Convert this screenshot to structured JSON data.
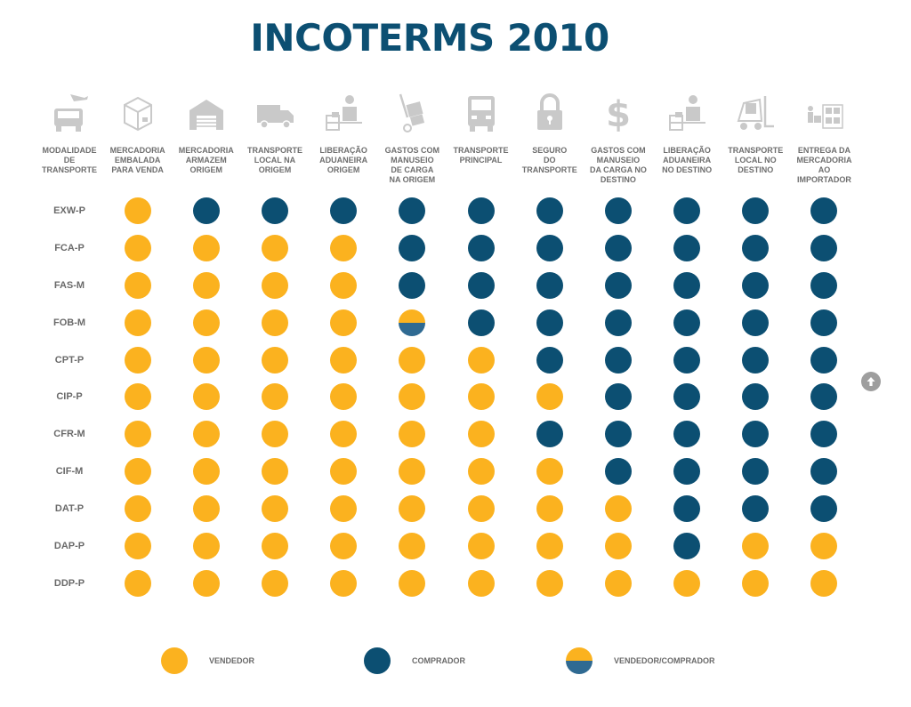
{
  "title": "INCOTERMS 2010",
  "columns": [
    {
      "label": "MODALIDADE\nDE\nTRANSPORTE",
      "icon": "truck-plane-icon"
    },
    {
      "label": "MERCADORIA\nEMBALADA\nPARA VENDA",
      "icon": "package-box-icon"
    },
    {
      "label": "MERCADORIA\nARMAZEM\nORIGEM",
      "icon": "warehouse-icon"
    },
    {
      "label": "TRANSPORTE\nLOCAL NA\nORIGEM",
      "icon": "delivery-truck-icon"
    },
    {
      "label": "LIBERAÇÃO\nADUANEIRA\nORIGEM",
      "icon": "customs-officer-icon"
    },
    {
      "label": "GASTOS COM\nMANUSEIO\nDE CARGA\nNA ORIGEM",
      "icon": "hand-truck-icon"
    },
    {
      "label": "TRANSPORTE\nPRINCIPAL",
      "icon": "truck-front-icon"
    },
    {
      "label": "SEGURO\nDO TRANSPORTE",
      "icon": "padlock-icon"
    },
    {
      "label": "GASTOS COM\nMANUSEIO\nDA CARGA NO\nDESTINO",
      "icon": "dollar-icon"
    },
    {
      "label": "LIBERAÇÃO\nADUANEIRA\nNO DESTINO",
      "icon": "customs-officer-icon"
    },
    {
      "label": "TRANSPORTE\nLOCAL NO\nDESTINO",
      "icon": "forklift-icon"
    },
    {
      "label": "ENTREGA DA\nMERCADORIA\nAO\nIMPORTADOR",
      "icon": "delivery-person-icon"
    }
  ],
  "rows": [
    {
      "term": "EXW-P",
      "cells": [
        "v",
        "c",
        "c",
        "c",
        "c",
        "c",
        "c",
        "c",
        "c",
        "c",
        "c"
      ]
    },
    {
      "term": "FCA-P",
      "cells": [
        "v",
        "v",
        "v",
        "v",
        "c",
        "c",
        "c",
        "c",
        "c",
        "c",
        "c"
      ]
    },
    {
      "term": "FAS-M",
      "cells": [
        "v",
        "v",
        "v",
        "v",
        "c",
        "c",
        "c",
        "c",
        "c",
        "c",
        "c"
      ]
    },
    {
      "term": "FOB-M",
      "cells": [
        "v",
        "v",
        "v",
        "v",
        "vc",
        "c",
        "c",
        "c",
        "c",
        "c",
        "c"
      ]
    },
    {
      "term": "CPT-P",
      "cells": [
        "v",
        "v",
        "v",
        "v",
        "v",
        "v",
        "c",
        "c",
        "c",
        "c",
        "c"
      ]
    },
    {
      "term": "CIP-P",
      "cells": [
        "v",
        "v",
        "v",
        "v",
        "v",
        "v",
        "v",
        "c",
        "c",
        "c",
        "c"
      ]
    },
    {
      "term": "CFR-M",
      "cells": [
        "v",
        "v",
        "v",
        "v",
        "v",
        "v",
        "c",
        "c",
        "c",
        "c",
        "c"
      ]
    },
    {
      "term": "CIF-M",
      "cells": [
        "v",
        "v",
        "v",
        "v",
        "v",
        "v",
        "v",
        "c",
        "c",
        "c",
        "c"
      ]
    },
    {
      "term": "DAT-P",
      "cells": [
        "v",
        "v",
        "v",
        "v",
        "v",
        "v",
        "v",
        "v",
        "c",
        "c",
        "c"
      ]
    },
    {
      "term": "DAP-P",
      "cells": [
        "v",
        "v",
        "v",
        "v",
        "v",
        "v",
        "v",
        "v",
        "c",
        "v",
        "v"
      ]
    },
    {
      "term": "DDP-P",
      "cells": [
        "v",
        "v",
        "v",
        "v",
        "v",
        "v",
        "v",
        "v",
        "v",
        "v",
        "v"
      ]
    }
  ],
  "legend": [
    {
      "key": "v",
      "label": "VENDEDOR"
    },
    {
      "key": "c",
      "label": "COMPRADOR"
    },
    {
      "key": "vc",
      "label": "VENDEDOR/COMPRADOR"
    }
  ],
  "colors": {
    "vendedor": "#fbb21f",
    "comprador": "#0c4f72",
    "title": "#0c4f72",
    "icon_gray": "#c9c9c9"
  },
  "scroll_up_icon": "arrow-up-icon"
}
